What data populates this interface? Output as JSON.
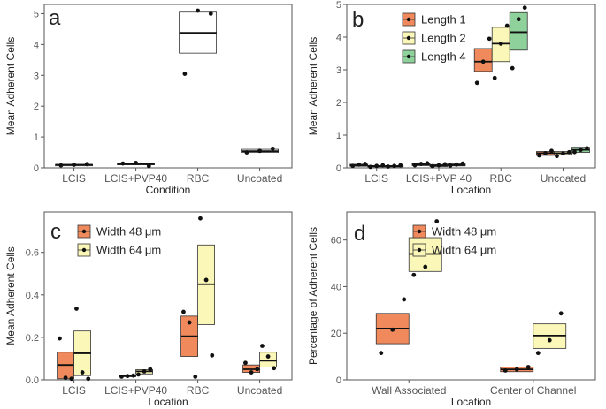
{
  "colors": {
    "orange": "#f08a5d",
    "yellow": "#fbf7b8",
    "green": "#8fd19a",
    "white": "#ffffff",
    "axis": "#555555",
    "tick_text": "#555555",
    "title_text": "#222222"
  },
  "chart_data": [
    {
      "id": "a",
      "type": "box",
      "panel_label": "a",
      "xlabel": "Condition",
      "ylabel": "Mean Adherent Cells",
      "ylim": [
        0,
        5.3
      ],
      "yticks": [
        0,
        1,
        2,
        3,
        4,
        5
      ],
      "ytick_labels": [
        "0",
        "1",
        "2",
        "3",
        "4",
        "5"
      ],
      "categories": [
        "LCIS",
        "LCIS+PVP40",
        "RBC",
        "Uncoated"
      ],
      "legend": null,
      "series": [
        {
          "name": "",
          "color_key": "white",
          "boxes": [
            {
              "category": "LCIS",
              "q1": 0.09,
              "median": 0.1,
              "q3": 0.11,
              "points": [
                0.08,
                0.1,
                0.12
              ]
            },
            {
              "category": "LCIS+PVP40",
              "q1": 0.1,
              "median": 0.12,
              "q3": 0.15,
              "points": [
                0.14,
                0.16,
                0.06
              ]
            },
            {
              "category": "RBC",
              "q1": 3.72,
              "median": 4.38,
              "q3": 5.05,
              "points": [
                3.05,
                5.1,
                5.0
              ]
            },
            {
              "category": "Uncoated",
              "q1": 0.5,
              "median": 0.54,
              "q3": 0.6,
              "points": [
                0.5,
                0.55,
                0.62
              ]
            }
          ]
        }
      ]
    },
    {
      "id": "b",
      "type": "box",
      "panel_label": "b",
      "xlabel": "Location",
      "ylabel": "Mean Adherent Cells",
      "ylim": [
        0,
        5.0
      ],
      "yticks": [
        0,
        1,
        2,
        3,
        4,
        5
      ],
      "ytick_labels": [
        "0",
        "1",
        "2",
        "3",
        "4",
        "5"
      ],
      "categories": [
        "LCIS",
        "LCIS+PVP 40",
        "RBC",
        "Uncoated"
      ],
      "legend": {
        "placement": "top-left",
        "entries": [
          "Length 1",
          "Length 2",
          "Length 4"
        ]
      },
      "series": [
        {
          "name": "Length 1",
          "color_key": "orange",
          "boxes": [
            {
              "category": "LCIS",
              "q1": 0.05,
              "median": 0.08,
              "q3": 0.11,
              "points": [
                0.06,
                0.1,
                0.12
              ]
            },
            {
              "category": "LCIS+PVP 40",
              "q1": 0.07,
              "median": 0.1,
              "q3": 0.13,
              "points": [
                0.08,
                0.12,
                0.14
              ]
            },
            {
              "category": "RBC",
              "q1": 2.95,
              "median": 3.25,
              "q3": 3.65,
              "points": [
                2.6,
                3.25,
                3.95
              ]
            },
            {
              "category": "Uncoated",
              "q1": 0.38,
              "median": 0.45,
              "q3": 0.5,
              "points": [
                0.38,
                0.45,
                0.52
              ]
            }
          ]
        },
        {
          "name": "Length 2",
          "color_key": "yellow",
          "boxes": [
            {
              "category": "LCIS",
              "q1": 0.03,
              "median": 0.05,
              "q3": 0.07,
              "points": [
                0.03,
                0.06,
                0.08
              ]
            },
            {
              "category": "LCIS+PVP 40",
              "q1": 0.04,
              "median": 0.07,
              "q3": 0.1,
              "points": [
                0.05,
                0.08,
                0.11
              ]
            },
            {
              "category": "RBC",
              "q1": 3.25,
              "median": 3.8,
              "q3": 4.3,
              "points": [
                2.75,
                3.8,
                4.35
              ]
            },
            {
              "category": "Uncoated",
              "q1": 0.4,
              "median": 0.45,
              "q3": 0.5,
              "points": [
                0.36,
                0.44,
                0.48
              ]
            }
          ]
        },
        {
          "name": "Length 4",
          "color_key": "green",
          "boxes": [
            {
              "category": "LCIS",
              "q1": 0.03,
              "median": 0.05,
              "q3": 0.07,
              "points": [
                0.04,
                0.06,
                0.08
              ]
            },
            {
              "category": "LCIS+PVP 40",
              "q1": 0.06,
              "median": 0.09,
              "q3": 0.12,
              "points": [
                0.07,
                0.1,
                0.13
              ]
            },
            {
              "category": "RBC",
              "q1": 3.6,
              "median": 4.15,
              "q3": 4.75,
              "points": [
                3.05,
                4.55,
                4.9
              ]
            },
            {
              "category": "Uncoated",
              "q1": 0.47,
              "median": 0.55,
              "q3": 0.63,
              "points": [
                0.48,
                0.55,
                0.6
              ]
            }
          ]
        }
      ]
    },
    {
      "id": "c",
      "type": "box",
      "panel_label": "c",
      "xlabel": "Location",
      "ylabel": "Mean Adherent Cells",
      "ylim": [
        0,
        0.79
      ],
      "yticks": [
        0,
        0.2,
        0.4,
        0.6
      ],
      "ytick_labels": [
        "0.0",
        "0.2",
        "0.4",
        "0.6"
      ],
      "categories": [
        "LCIS",
        "LCIS+PVP40",
        "RBC",
        "Uncoated"
      ],
      "legend": {
        "placement": "top-left",
        "entries": [
          "Width 48 μm",
          "Width 64 μm"
        ]
      },
      "series": [
        {
          "name": "Width 48 μm",
          "color_key": "orange",
          "boxes": [
            {
              "category": "LCIS",
              "q1": 0.005,
              "median": 0.07,
              "q3": 0.13,
              "points": [
                0.195,
                0.01,
                0.005
              ]
            },
            {
              "category": "LCIS+PVP40",
              "q1": 0.015,
              "median": 0.018,
              "q3": 0.022,
              "points": [
                0.015,
                0.018,
                0.02
              ]
            },
            {
              "category": "RBC",
              "q1": 0.11,
              "median": 0.205,
              "q3": 0.3,
              "points": [
                0.32,
                0.27,
                0.015
              ]
            },
            {
              "category": "Uncoated",
              "q1": 0.035,
              "median": 0.05,
              "q3": 0.07,
              "points": [
                0.08,
                0.035,
                0.05
              ]
            }
          ]
        },
        {
          "name": "Width 64 μm",
          "color_key": "yellow",
          "boxes": [
            {
              "category": "LCIS",
              "q1": 0.02,
              "median": 0.125,
              "q3": 0.23,
              "points": [
                0.335,
                0.035,
                0.005
              ]
            },
            {
              "category": "LCIS+PVP40",
              "q1": 0.028,
              "median": 0.04,
              "q3": 0.048,
              "points": [
                0.025,
                0.04,
                0.05
              ]
            },
            {
              "category": "RBC",
              "q1": 0.26,
              "median": 0.45,
              "q3": 0.635,
              "points": [
                0.76,
                0.47,
                0.115
              ]
            },
            {
              "category": "Uncoated",
              "q1": 0.06,
              "median": 0.09,
              "q3": 0.13,
              "points": [
                0.16,
                0.11,
                0.055
              ]
            }
          ]
        }
      ]
    },
    {
      "id": "d",
      "type": "box",
      "panel_label": "d",
      "xlabel": "Location",
      "ylabel": "Percentage of Adherent Cells",
      "ylim": [
        0,
        72
      ],
      "yticks": [
        0,
        20,
        40,
        60
      ],
      "ytick_labels": [
        "0",
        "20",
        "40",
        "60"
      ],
      "categories": [
        "Wall Associated",
        "Center of Channel"
      ],
      "legend": {
        "placement": "top-right",
        "entries": [
          "Width 48 μm",
          "Width 64 μm"
        ]
      },
      "series": [
        {
          "name": "Width 48 μm",
          "color_key": "orange",
          "boxes": [
            {
              "category": "Wall Associated",
              "q1": 15.5,
              "median": 22,
              "q3": 28.5,
              "points": [
                11.5,
                21.5,
                34.5
              ]
            },
            {
              "category": "Center of Channel",
              "q1": 3.5,
              "median": 4.5,
              "q3": 5.5,
              "points": [
                4.0,
                4.5,
                5.5
              ]
            }
          ]
        },
        {
          "name": "Width 64 μm",
          "color_key": "yellow",
          "boxes": [
            {
              "category": "Wall Associated",
              "q1": 46.5,
              "median": 54,
              "q3": 61,
              "points": [
                45,
                48.5,
                68
              ]
            },
            {
              "category": "Center of Channel",
              "q1": 13.5,
              "median": 19,
              "q3": 24,
              "points": [
                11.5,
                17,
                28.5
              ]
            }
          ]
        }
      ]
    }
  ]
}
